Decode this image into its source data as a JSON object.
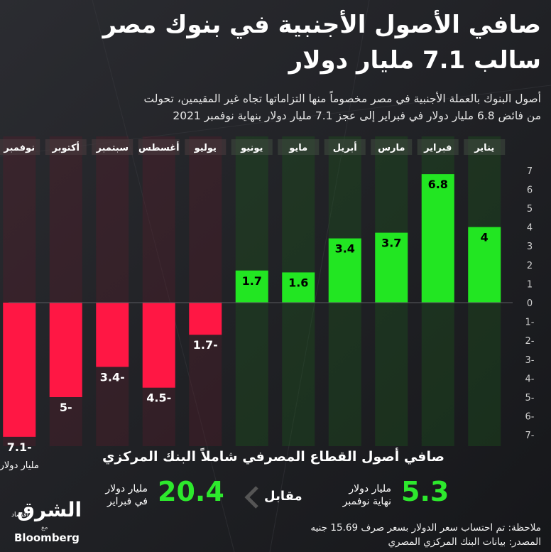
{
  "headline": {
    "line1": "صافي الأصول الأجنبية في بنوك مصر",
    "line2": "سالب 7.1 مليار دولار"
  },
  "subtitle": {
    "line1": "أصول البنوك بالعملة الأجنبية في مصر مخصوماً منها التزاماتها تجاه غير المقيمين، تحولت",
    "line2": "من فائض 6.8 مليار دولار في فبراير إلى عجز 7.1 مليار دولار بنهاية نوفمبر 2021"
  },
  "chart_data": {
    "type": "bar",
    "categories": [
      "يناير",
      "فبراير",
      "مارس",
      "أبريل",
      "مايو",
      "يونيو",
      "يوليو",
      "أغسطس",
      "سبتمبر",
      "أكتوبر",
      "نوفمبر"
    ],
    "values": [
      4,
      6.8,
      3.7,
      3.4,
      1.6,
      1.7,
      -1.7,
      -4.5,
      -3.4,
      -5,
      -7.1
    ],
    "data_labels": [
      "4",
      "6.8",
      "3.7",
      "3.4",
      "1.6",
      "1.7",
      "1.7-",
      "4.5-",
      "3.4-",
      "5-",
      "7.1-"
    ],
    "unit_label": "مليار دولار",
    "y_ticks": [
      "7",
      "6",
      "5",
      "4",
      "3",
      "2",
      "1",
      "0",
      "1-",
      "2-",
      "3-",
      "4-",
      "5-",
      "6-",
      "7-"
    ],
    "ylim": [
      -7.5,
      7.5
    ],
    "positive_color": "#22e622",
    "negative_color": "#ff1744",
    "axis_side": "right"
  },
  "summary": {
    "title": "صافي أصول القطاع المصرفي شاملاً البنك المركزي",
    "current_value": "5.3",
    "current_label_line1": "مليار دولار",
    "current_label_line2": "نهاية نوفمبر",
    "versus": "مقابل",
    "previous_value": "20.4",
    "previous_label_line1": "مليار دولار",
    "previous_label_line2": "في فبراير"
  },
  "notes": {
    "note": "ملاحظة: تم احتساب سعر الدولار بسعر صرف 15.69 جنيه",
    "source": "المصدر: بيانات البنك المركزي المصري"
  },
  "logo": {
    "brand": "الشرق",
    "sub": "اقتصاد",
    "with": "مع",
    "partner": "Bloomberg"
  }
}
